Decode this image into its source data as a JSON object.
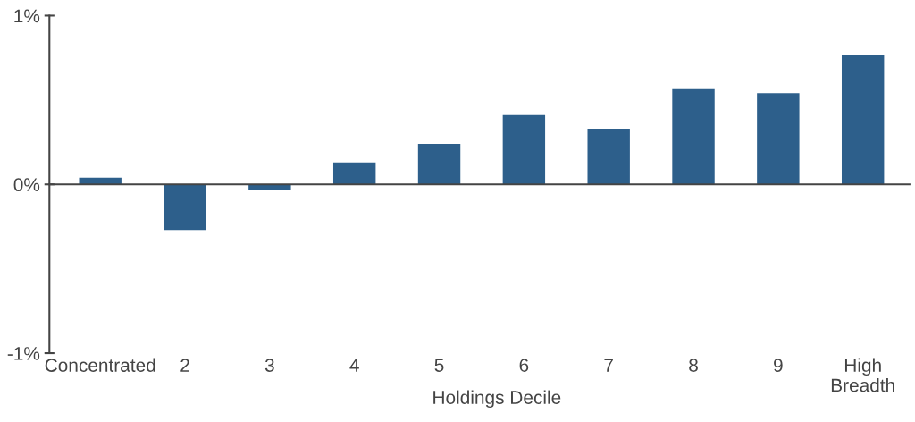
{
  "chart_data": {
    "type": "bar",
    "xlabel": "Holdings Decile",
    "categories": [
      "Concentrated",
      "2",
      "3",
      "4",
      "5",
      "6",
      "7",
      "8",
      "9",
      "High\nBreadth"
    ],
    "values": [
      0.04,
      -0.27,
      -0.03,
      0.13,
      0.24,
      0.41,
      0.33,
      0.57,
      0.54,
      0.77
    ],
    "color": "#2d5f8b",
    "ylim": [
      -1,
      1
    ],
    "yticks": [
      {
        "value": -1,
        "label": "-1%"
      },
      {
        "value": 0,
        "label": "0%"
      },
      {
        "value": 1,
        "label": "1%"
      }
    ],
    "legend": false
  }
}
